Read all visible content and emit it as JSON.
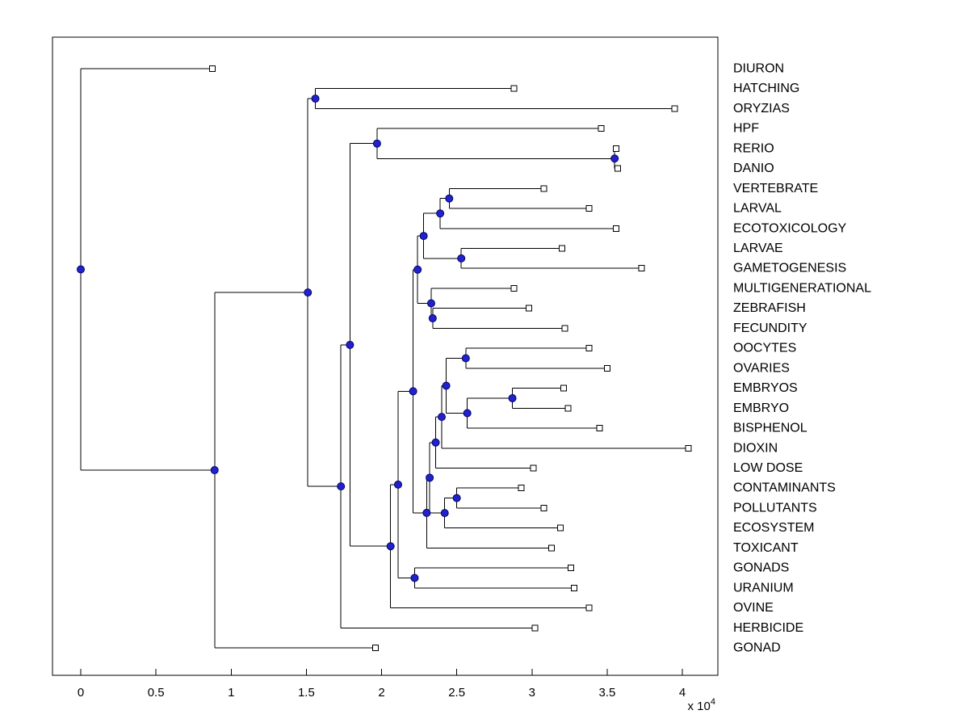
{
  "colors": {
    "background": "#ffffff",
    "line": "#000000",
    "node_fill": "#2222cc",
    "node_edge": "#000066",
    "leaf_fill": "#ffffff",
    "leaf_edge": "#000000",
    "text": "#000000"
  },
  "chart_data": {
    "type": "dendrogram",
    "orientation": "horizontal, root at left, leaves at right",
    "legend": "none",
    "grid": false,
    "x_axis": {
      "range": [
        -0.19,
        4.24
      ],
      "ticks": [
        0,
        0.5,
        1,
        1.5,
        2,
        2.5,
        3,
        3.5,
        4
      ],
      "tick_labels": [
        "0",
        "0.5",
        "1",
        "1.5",
        "2",
        "2.5",
        "3",
        "3.5",
        "4"
      ],
      "multiplier": {
        "base": "x 10",
        "exponent": "4"
      }
    },
    "leaf_labels": [
      "DIURON",
      "HATCHING",
      "ORYZIAS",
      "HPF",
      "RERIO",
      "DANIO",
      "VERTEBRATE",
      "LARVAL",
      "ECOTOXICOLOGY",
      "LARVAE",
      "GAMETOGENESIS",
      "MULTIGENERATIONAL",
      "ZEBRAFISH",
      "FECUNDITY",
      "OOCYTES",
      "OVARIES",
      "EMBRYOS",
      "EMBRYO",
      "BISPHENOL",
      "DIOXIN",
      "LOW DOSE",
      "CONTAMINANTS",
      "POLLUTANTS",
      "ECOSYSTEM",
      "TOXICANT",
      "GONADS",
      "URANIUM",
      "OVINE",
      "HERBICIDE",
      "GONAD"
    ],
    "tree": {
      "x": 0.0,
      "children": [
        {
          "leaf": 0,
          "tip": 0.875
        },
        {
          "x": 0.89,
          "children": [
            {
              "x": 1.51,
              "children": [
                {
                  "x": 1.56,
                  "children": [
                    {
                      "leaf": 1,
                      "tip": 2.88
                    },
                    {
                      "leaf": 2,
                      "tip": 3.95
                    }
                  ]
                },
                {
                  "x": 1.73,
                  "children": [
                    {
                      "x": 1.79,
                      "children": [
                        {
                          "x": 1.97,
                          "children": [
                            {
                              "leaf": 3,
                              "tip": 3.46
                            },
                            {
                              "x": 3.55,
                              "children": [
                                {
                                  "leaf": 4,
                                  "tip": 3.56
                                },
                                {
                                  "leaf": 5,
                                  "tip": 3.57
                                }
                              ]
                            }
                          ]
                        },
                        {
                          "x": 2.06,
                          "children": [
                            {
                              "x": 2.11,
                              "children": [
                                {
                                  "x": 2.21,
                                  "children": [
                                    {
                                      "x": 2.24,
                                      "children": [
                                        {
                                          "x": 2.28,
                                          "children": [
                                            {
                                              "x": 2.39,
                                              "children": [
                                                {
                                                  "x": 2.45,
                                                  "children": [
                                                    {
                                                      "leaf": 6,
                                                      "tip": 3.08
                                                    },
                                                    {
                                                      "leaf": 7,
                                                      "tip": 3.38
                                                    }
                                                  ]
                                                },
                                                {
                                                  "leaf": 8,
                                                  "tip": 3.56
                                                }
                                              ]
                                            },
                                            {
                                              "x": 2.53,
                                              "children": [
                                                {
                                                  "leaf": 9,
                                                  "tip": 3.2
                                                },
                                                {
                                                  "leaf": 10,
                                                  "tip": 3.73
                                                }
                                              ]
                                            }
                                          ]
                                        },
                                        {
                                          "x": 2.33,
                                          "children": [
                                            {
                                              "leaf": 11,
                                              "tip": 2.88
                                            },
                                            {
                                              "x": 2.34,
                                              "children": [
                                                {
                                                  "leaf": 12,
                                                  "tip": 2.98
                                                },
                                                {
                                                  "leaf": 13,
                                                  "tip": 3.22
                                                }
                                              ]
                                            }
                                          ]
                                        }
                                      ]
                                    },
                                    {
                                      "x": 2.3,
                                      "children": [
                                        {
                                          "x": 2.32,
                                          "children": [
                                            {
                                              "x": 2.36,
                                              "children": [
                                                {
                                                  "x": 2.4,
                                                  "children": [
                                                    {
                                                      "x": 2.43,
                                                      "children": [
                                                        {
                                                          "x": 2.56,
                                                          "children": [
                                                            {
                                                              "leaf": 14,
                                                              "tip": 3.38
                                                            },
                                                            {
                                                              "leaf": 15,
                                                              "tip": 3.5
                                                            }
                                                          ]
                                                        },
                                                        {
                                                          "x": 2.57,
                                                          "children": [
                                                            {
                                                              "x": 2.87,
                                                              "children": [
                                                                {
                                                                  "leaf": 16,
                                                                  "tip": 3.21
                                                                },
                                                                {
                                                                  "leaf": 17,
                                                                  "tip": 3.24
                                                                }
                                                              ]
                                                            },
                                                            {
                                                              "leaf": 18,
                                                              "tip": 3.45
                                                            }
                                                          ]
                                                        }
                                                      ]
                                                    },
                                                    {
                                                      "leaf": 19,
                                                      "tip": 4.04
                                                    }
                                                  ]
                                                },
                                                {
                                                  "leaf": 20,
                                                  "tip": 3.01
                                                }
                                              ]
                                            },
                                            {
                                              "x": 2.42,
                                              "children": [
                                                {
                                                  "x": 2.5,
                                                  "children": [
                                                    {
                                                      "leaf": 21,
                                                      "tip": 2.93
                                                    },
                                                    {
                                                      "leaf": 22,
                                                      "tip": 3.08
                                                    }
                                                  ]
                                                },
                                                {
                                                  "leaf": 23,
                                                  "tip": 3.19
                                                }
                                              ]
                                            }
                                          ]
                                        },
                                        {
                                          "leaf": 24,
                                          "tip": 3.13
                                        }
                                      ]
                                    }
                                  ]
                                },
                                {
                                  "x": 2.22,
                                  "children": [
                                    {
                                      "leaf": 25,
                                      "tip": 3.26
                                    },
                                    {
                                      "leaf": 26,
                                      "tip": 3.28
                                    }
                                  ]
                                }
                              ]
                            },
                            {
                              "leaf": 27,
                              "tip": 3.38
                            }
                          ]
                        }
                      ]
                    },
                    {
                      "leaf": 28,
                      "tip": 3.02
                    }
                  ]
                }
              ]
            },
            {
              "leaf": 29,
              "tip": 1.96
            }
          ]
        }
      ]
    }
  }
}
